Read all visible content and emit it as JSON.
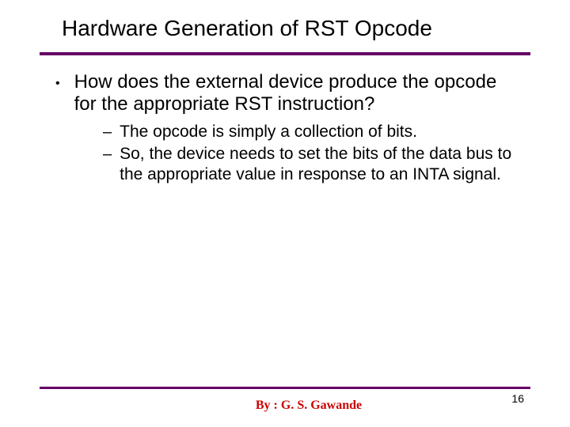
{
  "title": "Hardware Generation of RST Opcode",
  "bullets": {
    "main": "How does the external device produce the opcode for the appropriate RST instruction?",
    "sub1": "The opcode is simply a collection of bits.",
    "sub2": "So, the device needs to set the bits of the data bus to the appropriate value in response to an INTA signal."
  },
  "footer": {
    "byline": "By :  G. S. Gawande",
    "page": "16"
  },
  "colors": {
    "rule": "#660066",
    "byline": "#cc0000",
    "text": "#000000",
    "background": "#ffffff"
  }
}
